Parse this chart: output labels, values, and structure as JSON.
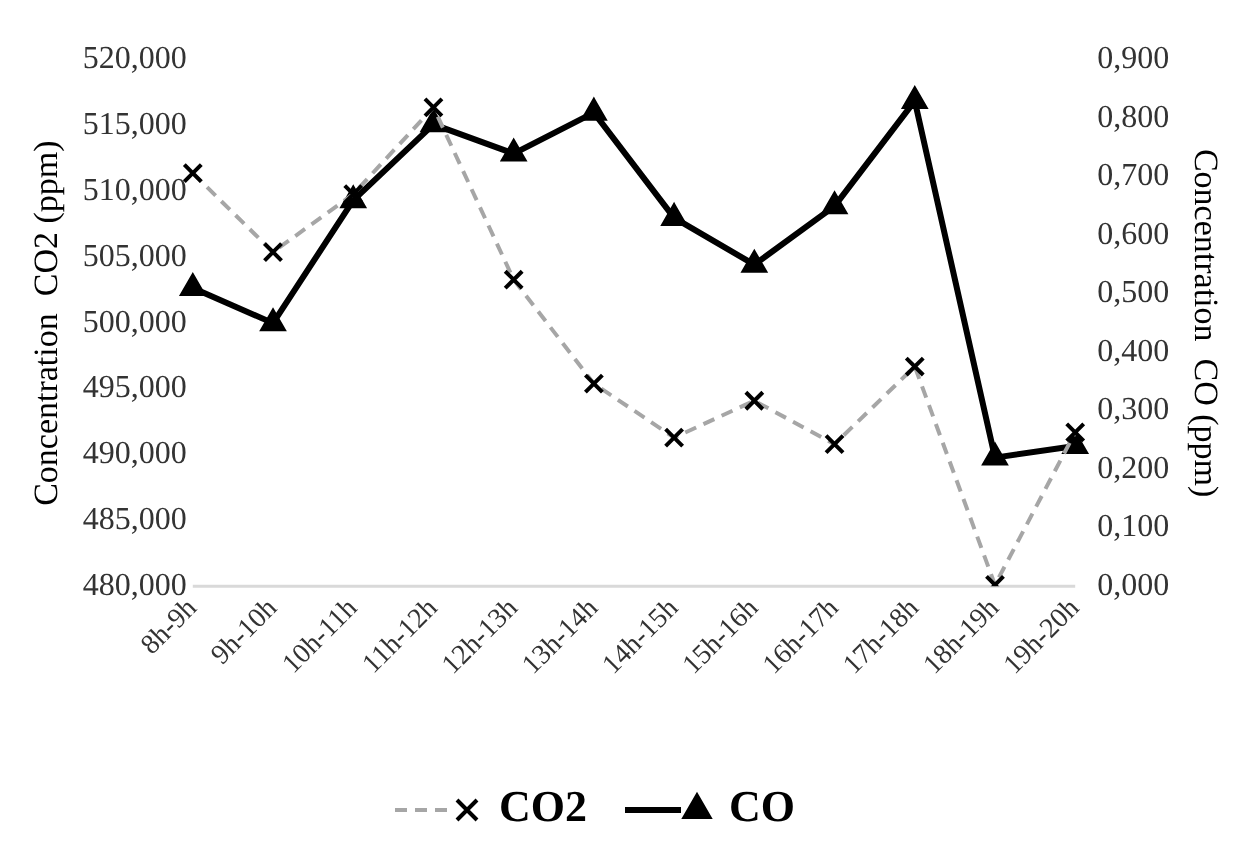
{
  "chart_data": {
    "type": "line",
    "ylabel": "Concentration  CO2 (ppm)",
    "y2label": "Concentration  CO (ppm)",
    "categories": [
      "8h-9h",
      "9h-10h",
      "10h-11h",
      "11h-12h",
      "12h-13h",
      "13h-14h",
      "14h-15h",
      "15h-16h",
      "16h-17h",
      "17h-18h",
      "18h-19h",
      "19h-20h"
    ],
    "series": [
      {
        "name": "CO2",
        "color": "#a6a6a6",
        "marker": "cross",
        "line_style": "dashed",
        "values": [
          511.4,
          505.4,
          509.8,
          516.4,
          503.3,
          495.4,
          491.3,
          494.1,
          490.8,
          496.7,
          480.1,
          491.7
        ]
      },
      {
        "name": "CO",
        "color": "#000000",
        "marker": "triangle",
        "line_style": "solid",
        "axis": "y2",
        "values": [
          0.51,
          0.45,
          0.66,
          0.79,
          0.74,
          0.81,
          0.63,
          0.55,
          0.65,
          0.83,
          0.22,
          0.24
        ]
      }
    ],
    "ylim": [
      480,
      520
    ],
    "yticks": [
      {
        "value": 480,
        "label": "480,000"
      },
      {
        "value": 485,
        "label": "485,000"
      },
      {
        "value": 490,
        "label": "490,000"
      },
      {
        "value": 495,
        "label": "495,000"
      },
      {
        "value": 500,
        "label": "500,000"
      },
      {
        "value": 505,
        "label": "505,000"
      },
      {
        "value": 510,
        "label": "510,000"
      },
      {
        "value": 515,
        "label": "515,000"
      },
      {
        "value": 520,
        "label": "520,000"
      }
    ],
    "y2lim": [
      0,
      0.9
    ],
    "y2ticks": [
      {
        "value": 0,
        "label": "0,000"
      },
      {
        "value": 0.1,
        "label": "0,100"
      },
      {
        "value": 0.2,
        "label": "0,200"
      },
      {
        "value": 0.3,
        "label": "0,300"
      },
      {
        "value": 0.4,
        "label": "0,400"
      },
      {
        "value": 0.5,
        "label": "0,500"
      },
      {
        "value": 0.6,
        "label": "0,600"
      },
      {
        "value": 0.7,
        "label": "0,700"
      },
      {
        "value": 0.8,
        "label": "0,800"
      },
      {
        "value": 0.9,
        "label": "0,900"
      }
    ],
    "grid": false,
    "legend": "bottom"
  }
}
